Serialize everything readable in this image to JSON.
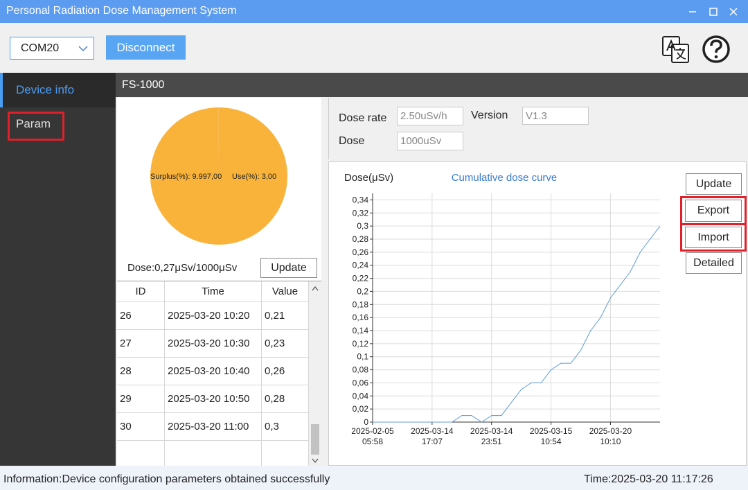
{
  "window": {
    "title": "Personal Radiation Dose Management System"
  },
  "toolbar": {
    "port": "COM20",
    "connect_button": "Disconnect"
  },
  "sidebar": {
    "items": [
      "Device info",
      "Param"
    ]
  },
  "device": {
    "name": "FS-1000"
  },
  "dose_summary": {
    "text": "Dose:0,27μSv/1000μSv",
    "update_button": "Update"
  },
  "table": {
    "columns": [
      "ID",
      "Time",
      "Value"
    ],
    "rows": [
      [
        "26",
        "2025-03-20 10:20",
        "0,21"
      ],
      [
        "27",
        "2025-03-20 10:30",
        "0,23"
      ],
      [
        "28",
        "2025-03-20 10:40",
        "0,26"
      ],
      [
        "29",
        "2025-03-20 10:50",
        "0,28"
      ],
      [
        "30",
        "2025-03-20 11:00",
        "0,3"
      ]
    ]
  },
  "info": {
    "dose_rate_label": "Dose rate",
    "dose_rate": "2.50uSv/h",
    "version_label": "Version",
    "version": "V1.3",
    "dose_label": "Dose",
    "dose": "1000uSv"
  },
  "chart_buttons": [
    "Update",
    "Export",
    "Import",
    "Detailed"
  ],
  "status": {
    "message": "Information:Device configuration parameters obtained successfully",
    "time": "Time:2025-03-20 11:17:26"
  },
  "chart_data": [
    {
      "type": "pie",
      "categories": [
        "Surplus(%):",
        "Use(%):"
      ],
      "values": [
        9997,
        3
      ],
      "value_labels": [
        "9.997,00",
        "3,00"
      ],
      "color": "#f9b33b"
    },
    {
      "type": "line",
      "title": "Cumulative dose curve",
      "y_label": "Dose(μSv)",
      "categories": [
        "2025-02-05 05:58",
        null,
        null,
        null,
        null,
        null,
        "2025-03-14 17:07",
        null,
        null,
        null,
        null,
        null,
        "2025-03-14 23:51",
        null,
        null,
        null,
        null,
        null,
        "2025-03-15 10:54",
        null,
        null,
        null,
        null,
        null,
        "2025-03-20 10:10",
        null,
        null,
        null,
        null,
        null
      ],
      "values": [
        0,
        0,
        0,
        0,
        0,
        0,
        0,
        0,
        0,
        0.01,
        0.01,
        0,
        0.01,
        0.01,
        0.03,
        0.05,
        0.06,
        0.06,
        0.08,
        0.09,
        0.09,
        0.11,
        0.14,
        0.16,
        0.19,
        0.21,
        0.23,
        0.26,
        0.28,
        0.3
      ],
      "color": "#5b9bd5",
      "ylim": [
        0,
        0.35
      ],
      "yticks": [
        0,
        {
          "value": 0.02,
          "label": "0,02"
        },
        {
          "value": 0.04,
          "label": "0,04"
        },
        {
          "value": 0.06,
          "label": "0,06"
        },
        {
          "value": 0.08,
          "label": "0,08"
        },
        {
          "value": 0.1,
          "label": "0,1"
        },
        {
          "value": 0.12,
          "label": "0,12"
        },
        {
          "value": 0.14,
          "label": "0,14"
        },
        {
          "value": 0.16,
          "label": "0,16"
        },
        {
          "value": 0.18,
          "label": "0,18"
        },
        {
          "value": 0.2,
          "label": "0,2"
        },
        {
          "value": 0.22,
          "label": "0,22"
        },
        {
          "value": 0.24,
          "label": "0,24"
        },
        {
          "value": 0.26,
          "label": "0,26"
        },
        {
          "value": 0.28,
          "label": "0,28"
        },
        {
          "value": 0.3,
          "label": "0,3"
        },
        {
          "value": 0.32,
          "label": "0,32"
        },
        {
          "value": 0.34,
          "label": "0,34"
        }
      ],
      "grid": true
    }
  ]
}
